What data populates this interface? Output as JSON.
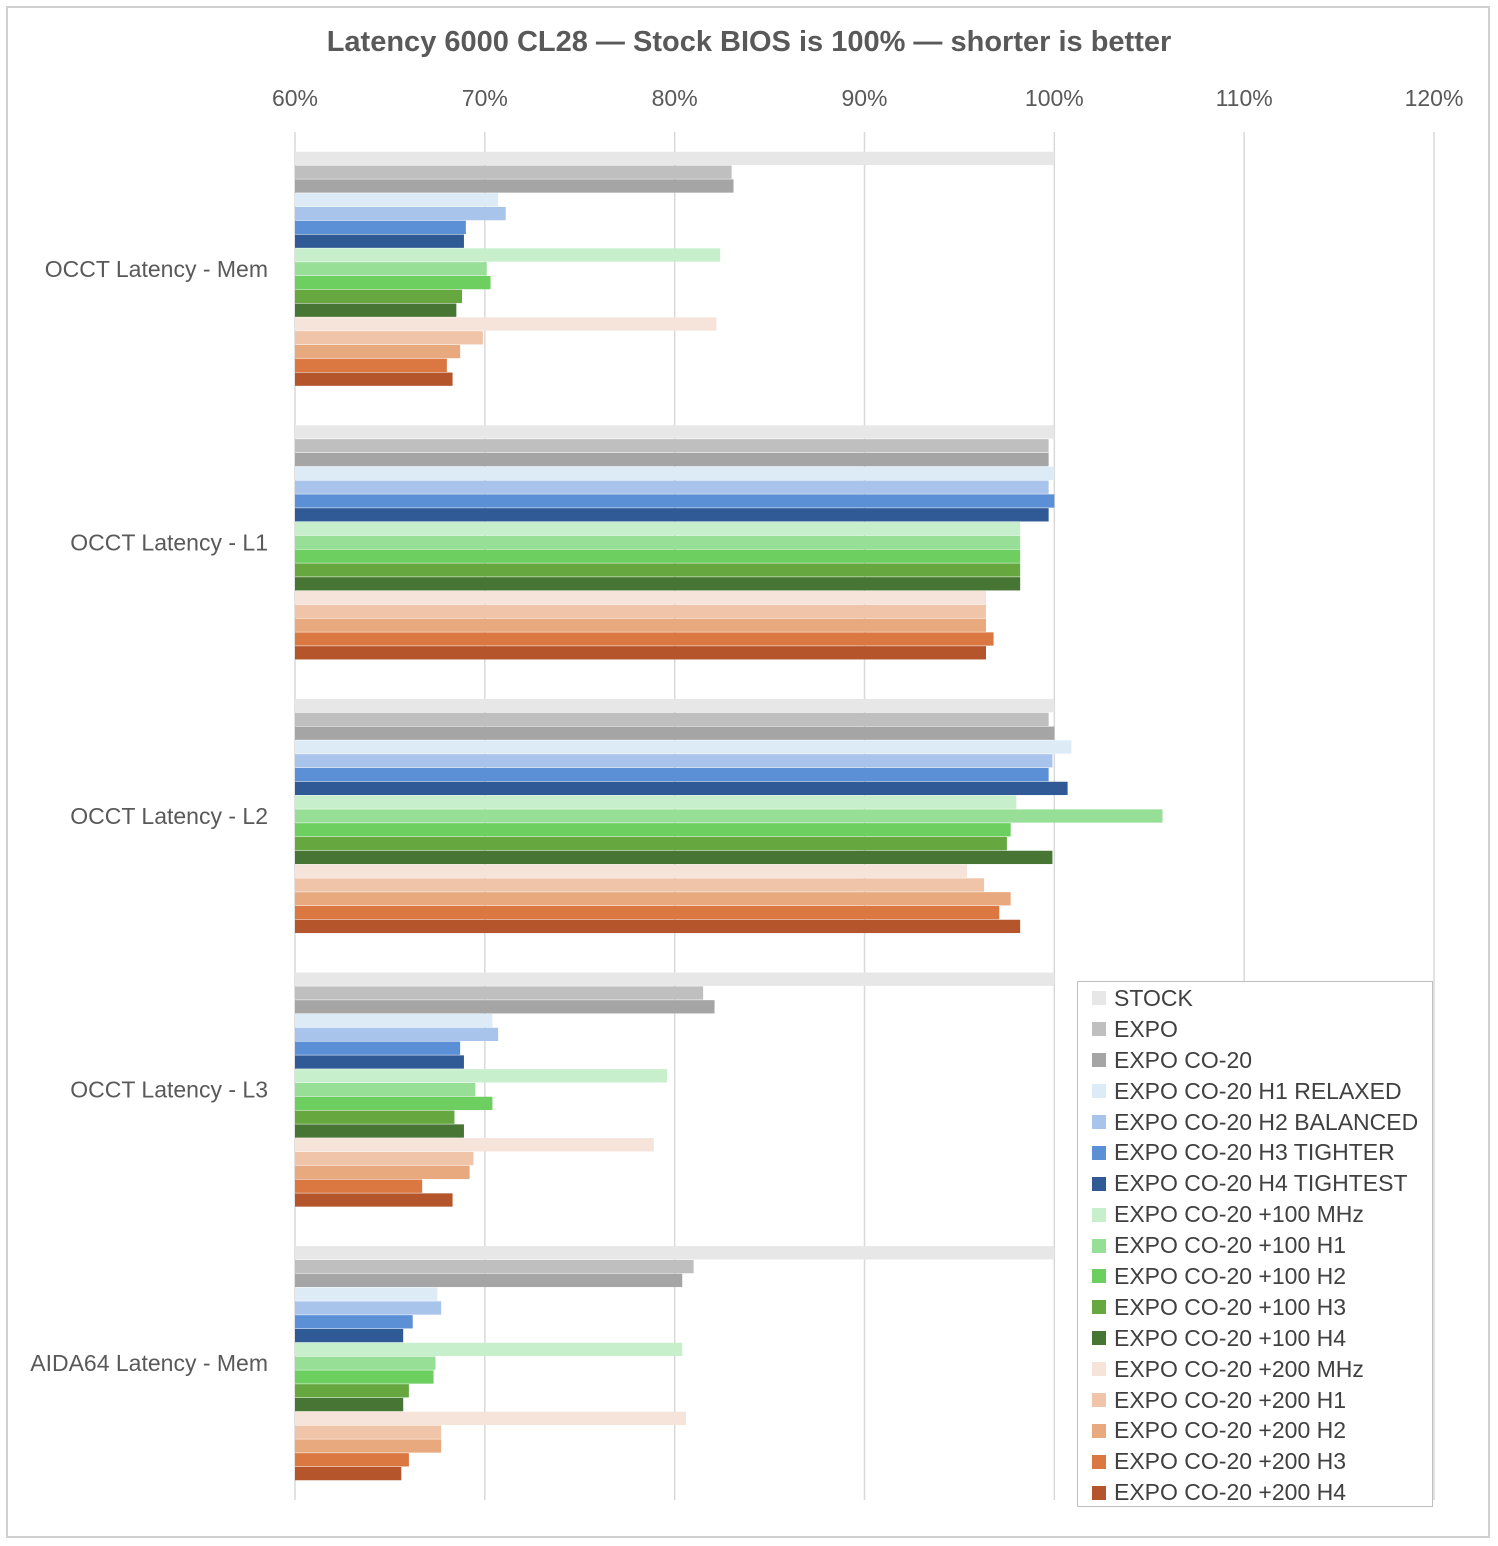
{
  "chart_data": {
    "type": "bar",
    "orientation": "horizontal",
    "title": "Latency 6000 CL28 — Stock BIOS is 100% — shorter is better",
    "xlabel": "",
    "ylabel": "",
    "xlim": [
      0.6,
      1.2
    ],
    "x_ticks": [
      0.6,
      0.7,
      0.8,
      0.9,
      1.0,
      1.1,
      1.2
    ],
    "x_tick_labels": [
      "60%",
      "70%",
      "80%",
      "90%",
      "100%",
      "110%",
      "120%"
    ],
    "x_axis_position": "top",
    "grid": "vertical",
    "legend_position": "bottom-right",
    "categories": [
      "OCCT Latency - Mem",
      "OCCT Latency - L1",
      "OCCT Latency - L2",
      "OCCT Latency - L3",
      "AIDA64 Latency - Mem"
    ],
    "series": [
      {
        "name": "STOCK",
        "color": "#e7e7e7",
        "values": [
          1.0,
          1.0,
          1.0,
          1.0,
          1.0
        ]
      },
      {
        "name": "EXPO",
        "color": "#bfbfbf",
        "values": [
          0.83,
          0.997,
          0.997,
          0.815,
          0.81
        ]
      },
      {
        "name": "EXPO CO-20",
        "color": "#a5a5a5",
        "values": [
          0.831,
          0.997,
          1.0,
          0.821,
          0.804
        ]
      },
      {
        "name": "EXPO CO-20 H1 RELAXED",
        "color": "#ddebf7",
        "values": [
          0.707,
          1.0,
          1.009,
          0.704,
          0.675
        ]
      },
      {
        "name": "EXPO CO-20 H2 BALANCED",
        "color": "#a9c4eb",
        "values": [
          0.711,
          0.997,
          0.999,
          0.707,
          0.677
        ]
      },
      {
        "name": "EXPO CO-20 H3 TIGHTER",
        "color": "#5b8fd6",
        "values": [
          0.69,
          1.0,
          0.997,
          0.687,
          0.662
        ]
      },
      {
        "name": "EXPO CO-20 H4 TIGHTEST",
        "color": "#2f5a95",
        "values": [
          0.689,
          0.997,
          1.007,
          0.689,
          0.657
        ]
      },
      {
        "name": "EXPO CO-20 +100 MHz",
        "color": "#c8efcb",
        "values": [
          0.824,
          0.982,
          0.98,
          0.796,
          0.804
        ]
      },
      {
        "name": "EXPO CO-20 +100 H1",
        "color": "#97de97",
        "values": [
          0.701,
          0.982,
          1.057,
          0.695,
          0.674
        ]
      },
      {
        "name": "EXPO CO-20 +100 H2",
        "color": "#6ccf60",
        "values": [
          0.703,
          0.982,
          0.977,
          0.704,
          0.673
        ]
      },
      {
        "name": "EXPO CO-20 +100 H3",
        "color": "#66a83f",
        "values": [
          0.688,
          0.982,
          0.975,
          0.684,
          0.66
        ]
      },
      {
        "name": "EXPO CO-20 +100 H4",
        "color": "#467534",
        "values": [
          0.685,
          0.982,
          0.999,
          0.689,
          0.657
        ]
      },
      {
        "name": "EXPO CO-20 +200 MHz",
        "color": "#f6e3d9",
        "values": [
          0.822,
          0.964,
          0.954,
          0.789,
          0.806
        ]
      },
      {
        "name": "EXPO CO-20 +200 H1",
        "color": "#efc4a8",
        "values": [
          0.699,
          0.964,
          0.963,
          0.694,
          0.677
        ]
      },
      {
        "name": "EXPO CO-20 +200 H2",
        "color": "#e8a97e",
        "values": [
          0.687,
          0.964,
          0.977,
          0.692,
          0.677
        ]
      },
      {
        "name": "EXPO CO-20 +200 H3",
        "color": "#db7841",
        "values": [
          0.68,
          0.968,
          0.971,
          0.667,
          0.66
        ]
      },
      {
        "name": "EXPO CO-20 +200 H4",
        "color": "#b4552c",
        "values": [
          0.683,
          0.964,
          0.982,
          0.683,
          0.656
        ]
      }
    ]
  }
}
